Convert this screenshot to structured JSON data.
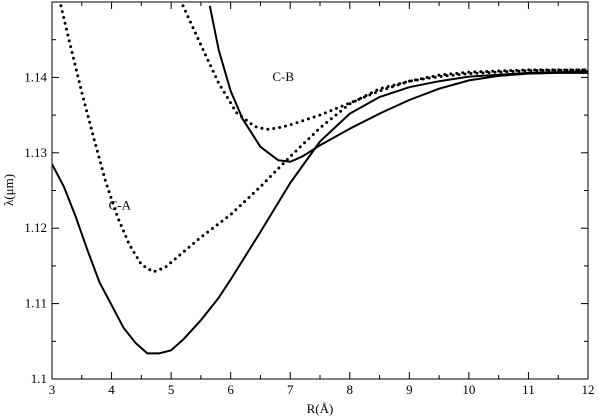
{
  "chart_data": {
    "type": "line",
    "title": "",
    "xlabel": "R(Å)",
    "ylabel": "λ(μm)",
    "xlim": [
      3,
      12
    ],
    "ylim": [
      1.1,
      1.15
    ],
    "xticks": [
      3,
      4,
      5,
      6,
      7,
      8,
      9,
      10,
      11,
      12
    ],
    "yticks": [
      1.1,
      1.11,
      1.12,
      1.13,
      1.14
    ],
    "ytick_labels": [
      "1.1",
      "1.11",
      "1.12",
      "1.13",
      "1.14"
    ],
    "grid": false,
    "annotations": [
      {
        "text": "C-A",
        "x": 3.95,
        "y": 1.1225
      },
      {
        "text": "C-B",
        "x": 6.7,
        "y": 1.1395
      }
    ],
    "series": [
      {
        "style": "solid",
        "points": [
          [
            3.0,
            1.1285
          ],
          [
            3.2,
            1.1255
          ],
          [
            3.4,
            1.1215
          ],
          [
            3.6,
            1.117
          ],
          [
            3.8,
            1.1128
          ],
          [
            4.0,
            1.1098
          ],
          [
            4.2,
            1.1068
          ],
          [
            4.4,
            1.1048
          ],
          [
            4.6,
            1.1034
          ],
          [
            4.8,
            1.1034
          ],
          [
            5.0,
            1.1038
          ],
          [
            5.2,
            1.1052
          ],
          [
            5.5,
            1.1078
          ],
          [
            5.8,
            1.1108
          ],
          [
            6.0,
            1.1132
          ],
          [
            6.5,
            1.1195
          ],
          [
            7.0,
            1.126
          ],
          [
            7.5,
            1.1315
          ],
          [
            8.0,
            1.1352
          ],
          [
            8.5,
            1.1374
          ],
          [
            9.0,
            1.1387
          ],
          [
            9.5,
            1.1395
          ],
          [
            10.0,
            1.1401
          ],
          [
            11.0,
            1.1406
          ],
          [
            12.0,
            1.1408
          ]
        ]
      },
      {
        "style": "solid",
        "points": [
          [
            5.65,
            1.1495
          ],
          [
            5.8,
            1.1436
          ],
          [
            6.0,
            1.1382
          ],
          [
            6.2,
            1.1345
          ],
          [
            6.5,
            1.1308
          ],
          [
            6.8,
            1.129
          ],
          [
            7.0,
            1.1288
          ],
          [
            7.2,
            1.1295
          ],
          [
            7.5,
            1.131
          ],
          [
            8.0,
            1.1332
          ],
          [
            8.5,
            1.1352
          ],
          [
            9.0,
            1.137
          ],
          [
            9.5,
            1.1385
          ],
          [
            10.0,
            1.1396
          ],
          [
            10.5,
            1.1402
          ],
          [
            11.0,
            1.1405
          ],
          [
            11.5,
            1.1406
          ],
          [
            12.0,
            1.1406
          ]
        ]
      },
      {
        "style": "dotted",
        "points": [
          [
            3.15,
            1.1495
          ],
          [
            3.3,
            1.1445
          ],
          [
            3.5,
            1.138
          ],
          [
            3.7,
            1.132
          ],
          [
            3.9,
            1.1262
          ],
          [
            4.1,
            1.1215
          ],
          [
            4.3,
            1.1178
          ],
          [
            4.5,
            1.1152
          ],
          [
            4.7,
            1.1142
          ],
          [
            4.9,
            1.1148
          ],
          [
            5.2,
            1.1168
          ],
          [
            5.5,
            1.1188
          ],
          [
            6.0,
            1.1218
          ],
          [
            6.5,
            1.1255
          ],
          [
            7.0,
            1.1295
          ],
          [
            7.5,
            1.1333
          ],
          [
            8.0,
            1.1365
          ],
          [
            8.5,
            1.1385
          ],
          [
            9.0,
            1.1395
          ],
          [
            9.5,
            1.1401
          ],
          [
            10.0,
            1.1405
          ],
          [
            11.0,
            1.1409
          ],
          [
            12.0,
            1.141
          ]
        ]
      },
      {
        "style": "dotted",
        "points": [
          [
            5.2,
            1.1495
          ],
          [
            5.5,
            1.1443
          ],
          [
            5.8,
            1.1392
          ],
          [
            6.1,
            1.1353
          ],
          [
            6.4,
            1.1335
          ],
          [
            6.6,
            1.1331
          ],
          [
            6.8,
            1.1333
          ],
          [
            7.0,
            1.1337
          ],
          [
            7.5,
            1.135
          ],
          [
            8.0,
            1.1366
          ],
          [
            8.5,
            1.1382
          ],
          [
            9.0,
            1.1395
          ],
          [
            9.5,
            1.1403
          ],
          [
            10.0,
            1.1407
          ],
          [
            11.0,
            1.141
          ],
          [
            12.0,
            1.141
          ]
        ]
      }
    ]
  }
}
